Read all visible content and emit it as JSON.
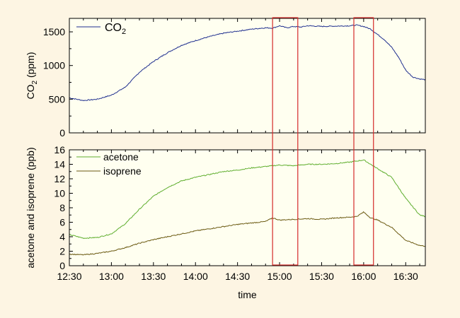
{
  "chart_data": [
    {
      "type": "line",
      "ylabel": "CO2 (ppm)",
      "ylabel_parts": {
        "base": "CO",
        "sub": "2",
        "rest": " (ppm)"
      },
      "ylim": [
        0,
        1700
      ],
      "yticks": [
        0,
        500,
        1000,
        1500
      ],
      "grid": false,
      "legend": "top-left",
      "series": [
        {
          "name": "CO2",
          "name_parts": {
            "base": "CO",
            "sub": "2"
          },
          "color": "#1f2f8f",
          "x": [
            "12:30",
            "12:40",
            "12:50",
            "13:00",
            "13:10",
            "13:20",
            "13:30",
            "13:40",
            "13:50",
            "14:00",
            "14:10",
            "14:20",
            "14:30",
            "14:40",
            "14:50",
            "14:55",
            "15:00",
            "15:05",
            "15:10",
            "15:15",
            "15:20",
            "15:30",
            "15:40",
            "15:50",
            "15:55",
            "16:00",
            "16:05",
            "16:10",
            "16:15",
            "16:20",
            "16:25",
            "16:30",
            "16:35",
            "16:40",
            "16:44"
          ],
          "values": [
            520,
            480,
            500,
            560,
            680,
            900,
            1060,
            1190,
            1300,
            1370,
            1430,
            1480,
            1510,
            1540,
            1560,
            1555,
            1590,
            1560,
            1580,
            1570,
            1590,
            1580,
            1585,
            1590,
            1600,
            1580,
            1540,
            1460,
            1380,
            1270,
            1120,
            930,
            830,
            800,
            790
          ]
        }
      ]
    },
    {
      "type": "line",
      "xlabel": "time",
      "ylabel": "acetone and isoprene (ppb)",
      "ylim": [
        0,
        16
      ],
      "yticks": [
        0,
        2,
        4,
        6,
        8,
        10,
        12,
        14,
        16
      ],
      "xticks": [
        "12:30",
        "13:00",
        "13:30",
        "14:00",
        "14:30",
        "15:00",
        "15:30",
        "16:00",
        "16:30"
      ],
      "grid": false,
      "legend": "top-left",
      "series": [
        {
          "name": "acetone",
          "color": "#5fae2e",
          "x": [
            "12:30",
            "12:40",
            "12:50",
            "13:00",
            "13:10",
            "13:20",
            "13:30",
            "13:40",
            "13:50",
            "14:00",
            "14:10",
            "14:20",
            "14:30",
            "14:40",
            "14:50",
            "15:00",
            "15:10",
            "15:20",
            "15:30",
            "15:40",
            "15:50",
            "16:00",
            "16:05",
            "16:10",
            "16:20",
            "16:30",
            "16:40",
            "16:44"
          ],
          "values": [
            4.3,
            3.8,
            3.9,
            4.4,
            5.8,
            7.8,
            9.6,
            10.8,
            11.7,
            12.2,
            12.6,
            13.0,
            13.2,
            13.5,
            13.7,
            13.9,
            13.8,
            14.0,
            14.0,
            14.1,
            14.3,
            14.6,
            14.0,
            13.4,
            12.2,
            9.3,
            7.0,
            6.8
          ]
        },
        {
          "name": "isoprene",
          "color": "#6b5a12",
          "x": [
            "12:30",
            "12:40",
            "12:50",
            "13:00",
            "13:10",
            "13:20",
            "13:30",
            "13:40",
            "13:50",
            "14:00",
            "14:10",
            "14:20",
            "14:30",
            "14:40",
            "14:50",
            "14:55",
            "15:00",
            "15:10",
            "15:20",
            "15:30",
            "15:40",
            "15:50",
            "15:55",
            "16:00",
            "16:05",
            "16:10",
            "16:20",
            "16:30",
            "16:40",
            "16:44"
          ],
          "values": [
            1.6,
            1.5,
            1.7,
            2.0,
            2.5,
            3.1,
            3.6,
            4.0,
            4.4,
            4.8,
            5.1,
            5.4,
            5.7,
            5.9,
            6.1,
            6.6,
            6.3,
            6.4,
            6.5,
            6.4,
            6.6,
            6.7,
            6.8,
            7.4,
            6.6,
            6.3,
            5.3,
            3.5,
            2.8,
            2.7
          ]
        }
      ]
    }
  ],
  "highlight_windows": [
    {
      "x_start": "14:55",
      "x_end": "15:13"
    },
    {
      "x_start": "15:53",
      "x_end": "16:07"
    }
  ],
  "highlight_color": "#d42a2a",
  "background_color": "#fdf5e3",
  "plot_color": "#fffff0"
}
